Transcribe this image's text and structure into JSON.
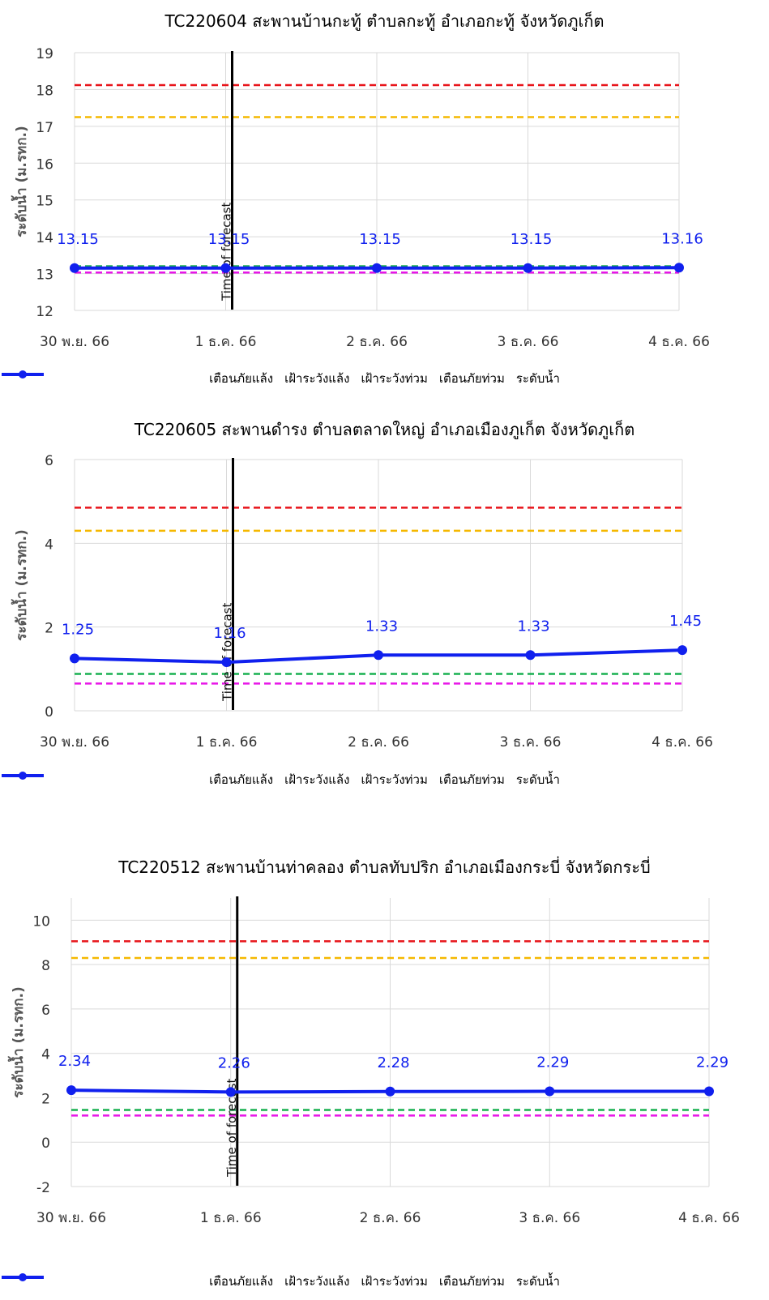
{
  "legend_labels": {
    "drought_warning": "เตือนภัยแล้ง",
    "drought_watch": "เฝ้าระวังแล้ง",
    "flood_watch": "เฝ้าระวังท่วม",
    "flood_warning": "เตือนภัยท่วม",
    "water_level": "ระดับน้ำ"
  },
  "colors": {
    "drought_warning": "#e815e8",
    "drought_watch": "#18b050",
    "flood_watch": "#f5b800",
    "flood_warning": "#e8141a",
    "water_level": "#1020ee",
    "forecast_line": "#000000",
    "grid": "#d9d9d9"
  },
  "chart_data": [
    {
      "type": "line",
      "title": "TC220604 สะพานบ้านกะทู้ ตำบลกะทู้ อำเภอกะทู้  จังหวัดภูเก็ต",
      "ylabel": "ระดับน้ำ (ม.รทก.)",
      "categories": [
        "30 พ.ย. 66",
        "1 ธ.ค. 66",
        "2 ธ.ค. 66",
        "3 ธ.ค. 66",
        "4 ธ.ค. 66"
      ],
      "ylim": [
        12,
        19
      ],
      "yticks": [
        12,
        13,
        14,
        15,
        16,
        17,
        18,
        19
      ],
      "forecast_label": "Time of forecast",
      "forecast_index": 1,
      "series": [
        {
          "name": "เตือนภัยแล้ง",
          "key": "drought_warning",
          "style": "dashed",
          "values": [
            13.03,
            13.03,
            13.03,
            13.03,
            13.03
          ]
        },
        {
          "name": "เฝ้าระวังแล้ง",
          "key": "drought_watch",
          "style": "dashed",
          "values": [
            13.2,
            13.2,
            13.2,
            13.2,
            13.2
          ]
        },
        {
          "name": "เฝ้าระวังท่วม",
          "key": "flood_watch",
          "style": "dashed",
          "values": [
            17.25,
            17.25,
            17.25,
            17.25,
            17.25
          ]
        },
        {
          "name": "เตือนภัยท่วม",
          "key": "flood_warning",
          "style": "dashed",
          "values": [
            18.12,
            18.12,
            18.12,
            18.12,
            18.12
          ]
        },
        {
          "name": "ระดับน้ำ",
          "key": "water_level",
          "style": "solid-markers",
          "values": [
            13.15,
            13.15,
            13.15,
            13.15,
            13.16
          ],
          "labels": [
            "13.15",
            "13.15",
            "13.15",
            "13.15",
            "13.16"
          ]
        }
      ]
    },
    {
      "type": "line",
      "title": "TC220605 สะพานดำรง ตำบลตลาดใหญ่ อำเภอเมืองภูเก็ต จังหวัดภูเก็ต",
      "ylabel": "ระดับน้ำ (ม.รทก.)",
      "categories": [
        "30 พ.ย. 66",
        "1 ธ.ค. 66",
        "2 ธ.ค. 66",
        "3 ธ.ค. 66",
        "4 ธ.ค. 66"
      ],
      "ylim": [
        0,
        6
      ],
      "yticks": [
        0,
        2,
        4,
        6
      ],
      "forecast_label": "Time of forecast",
      "forecast_index": 1,
      "series": [
        {
          "name": "เตือนภัยแล้ง",
          "key": "drought_warning",
          "style": "dashed",
          "values": [
            0.65,
            0.65,
            0.65,
            0.65,
            0.65
          ]
        },
        {
          "name": "เฝ้าระวังแล้ง",
          "key": "drought_watch",
          "style": "dashed",
          "values": [
            0.88,
            0.88,
            0.88,
            0.88,
            0.88
          ]
        },
        {
          "name": "เฝ้าระวังท่วม",
          "key": "flood_watch",
          "style": "dashed",
          "values": [
            4.3,
            4.3,
            4.3,
            4.3,
            4.3
          ]
        },
        {
          "name": "เตือนภัยท่วม",
          "key": "flood_warning",
          "style": "dashed",
          "values": [
            4.85,
            4.85,
            4.85,
            4.85,
            4.85
          ]
        },
        {
          "name": "ระดับน้ำ",
          "key": "water_level",
          "style": "solid-markers",
          "values": [
            1.25,
            1.16,
            1.33,
            1.33,
            1.45
          ],
          "labels": [
            "1.25",
            "1.16",
            "1.33",
            "1.33",
            "1.45"
          ]
        }
      ]
    },
    {
      "type": "line",
      "title": "TC220512 สะพานบ้านท่าคลอง ตำบลทับปริก อำเภอเมืองกระบี่  จังหวัดกระบี่",
      "ylabel": "ระดับน้ำ (ม.รทก.)",
      "categories": [
        "30 พ.ย. 66",
        "1 ธ.ค. 66",
        "2 ธ.ค. 66",
        "3 ธ.ค. 66",
        "4 ธ.ค. 66"
      ],
      "ylim": [
        -2,
        11
      ],
      "yticks": [
        -2,
        0,
        2,
        4,
        6,
        8,
        10
      ],
      "forecast_label": "Time of forecast",
      "forecast_index": 1,
      "series": [
        {
          "name": "เตือนภัยแล้ง",
          "key": "drought_warning",
          "style": "dashed",
          "values": [
            1.2,
            1.2,
            1.2,
            1.2,
            1.2
          ]
        },
        {
          "name": "เฝ้าระวังแล้ง",
          "key": "drought_watch",
          "style": "dashed",
          "values": [
            1.45,
            1.45,
            1.45,
            1.45,
            1.45
          ]
        },
        {
          "name": "เฝ้าระวังท่วม",
          "key": "flood_watch",
          "style": "dashed",
          "values": [
            8.3,
            8.3,
            8.3,
            8.3,
            8.3
          ]
        },
        {
          "name": "เตือนภัยท่วม",
          "key": "flood_warning",
          "style": "dashed",
          "values": [
            9.05,
            9.05,
            9.05,
            9.05,
            9.05
          ]
        },
        {
          "name": "ระดับน้ำ",
          "key": "water_level",
          "style": "solid-markers",
          "values": [
            2.34,
            2.26,
            2.28,
            2.29,
            2.29
          ],
          "labels": [
            "2.34",
            "2.26",
            "2.28",
            "2.29",
            "2.29"
          ]
        }
      ]
    }
  ]
}
